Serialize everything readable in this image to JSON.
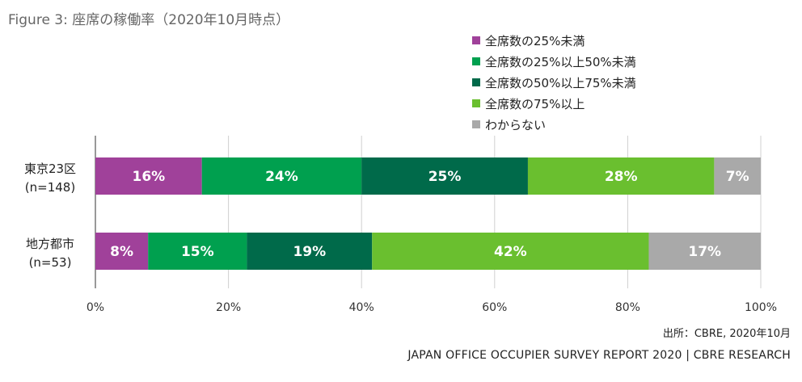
{
  "title": "Figure 3: 座席の稼働率（2020年10月時点）",
  "source": "出所：CBRE, 2020年10月",
  "footer": "JAPAN OFFICE OCCUPIER SURVEY REPORT 2020 | CBRE RESEARCH",
  "chart_data": {
    "type": "bar",
    "orientation": "horizontal",
    "stacked": true,
    "categories": [
      {
        "name": "東京23区",
        "sample": "(n=148)"
      },
      {
        "name": "地方都市",
        "sample": "(n=53)"
      }
    ],
    "series": [
      {
        "name": "全席数の25%未満",
        "color": "#a0419a",
        "values": [
          16,
          8
        ],
        "value_labels": [
          "16%",
          "8%"
        ]
      },
      {
        "name": "全席数の25%以上50%未満",
        "color": "#00a04f",
        "values": [
          24,
          15
        ],
        "value_labels": [
          "24%",
          "15%"
        ]
      },
      {
        "name": "全席数の50%以上75%未満",
        "color": "#006a4a",
        "values": [
          25,
          19
        ],
        "value_labels": [
          "25%",
          "19%"
        ]
      },
      {
        "name": "全席数の75%以上",
        "color": "#6abf2f",
        "values": [
          28,
          42
        ],
        "value_labels": [
          "28%",
          "42%"
        ]
      },
      {
        "name": "わからない",
        "color": "#a9a9a9",
        "values": [
          7,
          17
        ],
        "value_labels": [
          "7%",
          "17%"
        ]
      }
    ],
    "xlim": [
      0,
      100
    ],
    "x_ticks": [
      "0%",
      "20%",
      "40%",
      "60%",
      "80%",
      "100%"
    ],
    "grid": true,
    "legend_position": "top-right"
  }
}
